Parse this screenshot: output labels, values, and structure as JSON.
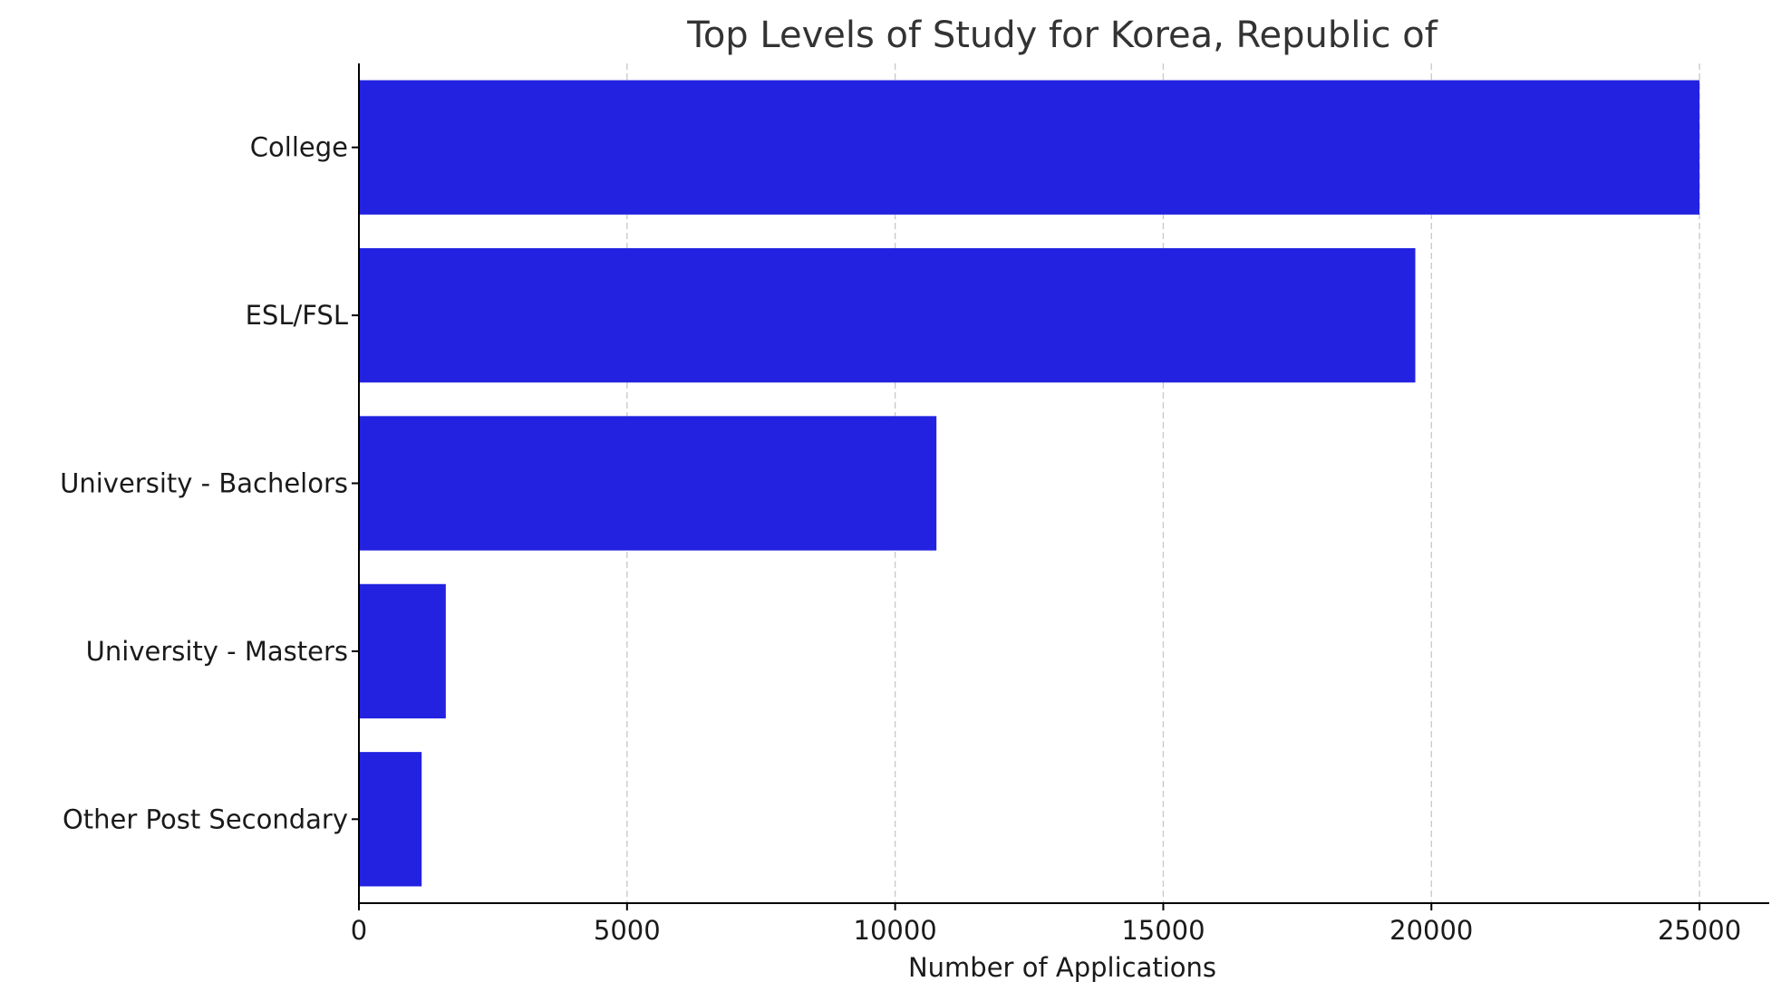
{
  "chart_data": {
    "type": "bar",
    "orientation": "horizontal",
    "title": "Top Levels of Study for Korea, Republic of",
    "xlabel": "Number of Applications",
    "ylabel": "",
    "categories": [
      "College",
      "ESL/FSL",
      "University - Bachelors",
      "University - Masters",
      "Other Post Secondary"
    ],
    "values": [
      25000,
      19700,
      10770,
      1620,
      1170
    ],
    "xlim": [
      0,
      26300
    ],
    "xticks": [
      0,
      5000,
      10000,
      15000,
      20000,
      25000
    ],
    "xtick_labels": [
      "0",
      "5000",
      "10000",
      "15000",
      "20000",
      "25000"
    ],
    "grid": "x-axis dashed",
    "legend": "none",
    "bar_color": "#2222e0"
  }
}
